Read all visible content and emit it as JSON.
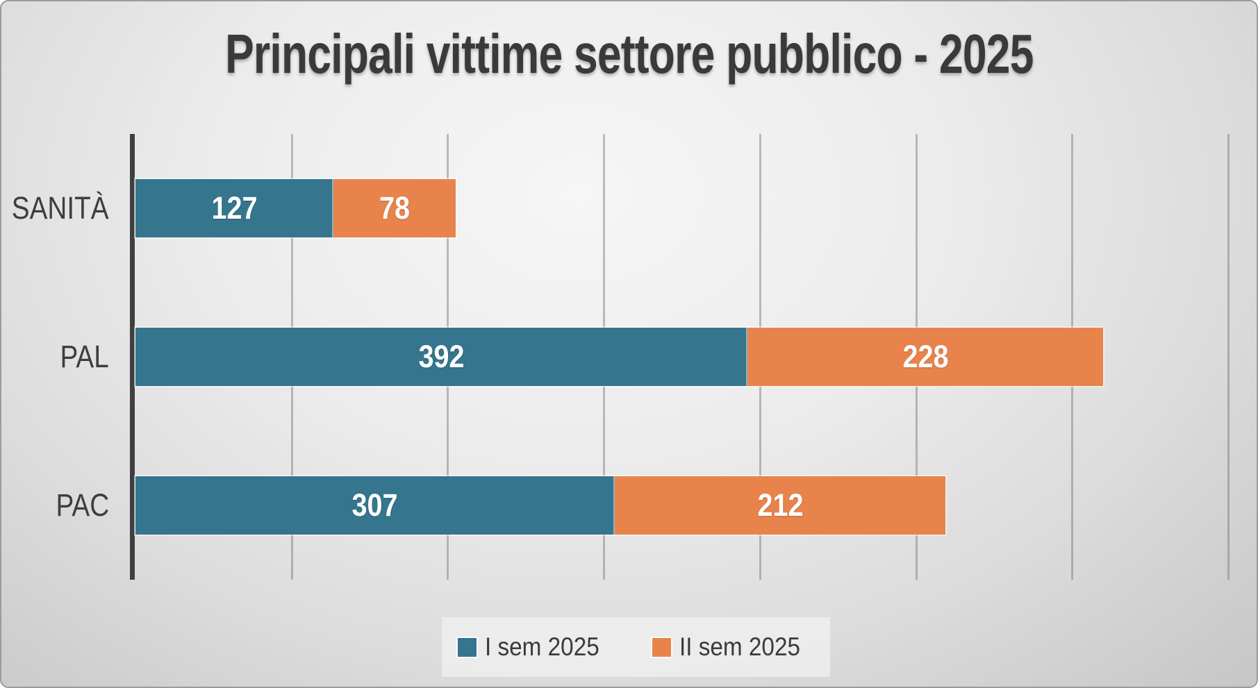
{
  "title": "Principali vittime settore pubblico - 2025",
  "chart_data": {
    "type": "bar",
    "orientation": "horizontal",
    "stacked": true,
    "title": "Principali vittime settore pubblico - 2025",
    "categories": [
      "SANITÀ",
      "PAL",
      "PAC"
    ],
    "series": [
      {
        "name": "I sem 2025",
        "color": "#35758E",
        "values": [
          127,
          392,
          307
        ]
      },
      {
        "name": "II sem 2025",
        "color": "#E8834C",
        "values": [
          78,
          228,
          212
        ]
      }
    ],
    "xlim": [
      0,
      720
    ],
    "gridline_interval": 100,
    "grid": true,
    "legend_position": "bottom-center",
    "value_labels": "inside-center"
  },
  "legend": {
    "items": [
      {
        "label": "I sem 2025",
        "color": "#35758E"
      },
      {
        "label": "II sem 2025",
        "color": "#E8834C"
      }
    ]
  },
  "colors": {
    "series_1": "#35758E",
    "series_2": "#E8834C",
    "title_text": "#3A3A3A",
    "category_text": "#3E3E3E",
    "value_text": "#FFFFFF",
    "axis_line": "#3F3F3F",
    "gridline": "#A3A3A3",
    "legend_bg": "#EDEDED",
    "background_light": "#F6F6F6",
    "background_dark": "#C6C6C6"
  }
}
